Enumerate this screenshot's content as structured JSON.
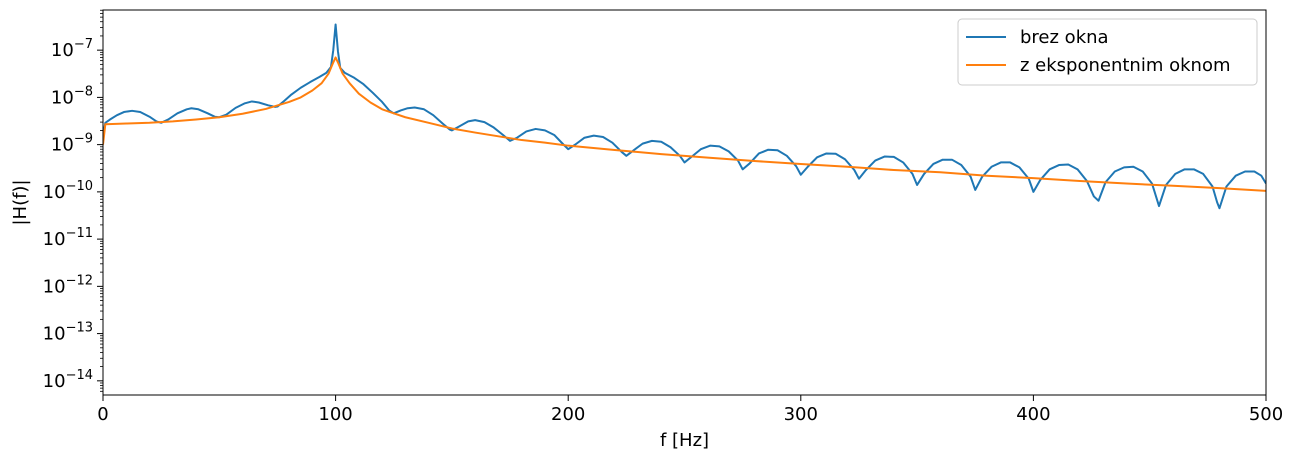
{
  "chart_data": {
    "type": "line",
    "xlabel": "f [Hz]",
    "ylabel": "|H(f)|",
    "xlim": [
      0,
      500
    ],
    "ylim_log10": [
      -14.3,
      -6.15
    ],
    "yscale": "log",
    "grid": false,
    "legend_placement": "top-right",
    "x_ticks": [
      0,
      100,
      200,
      300,
      400,
      500
    ],
    "x_tick_labels": [
      "0",
      "100",
      "200",
      "300",
      "400",
      "500"
    ],
    "y_ticks_log10": [
      -14,
      -13,
      -12,
      -11,
      -10,
      -9,
      -8,
      -7
    ],
    "y_tick_labels": [
      {
        "base": "10",
        "exp": "−14"
      },
      {
        "base": "10",
        "exp": "−13"
      },
      {
        "base": "10",
        "exp": "−12"
      },
      {
        "base": "10",
        "exp": "−11"
      },
      {
        "base": "10",
        "exp": "−10"
      },
      {
        "base": "10",
        "exp": "−9"
      },
      {
        "base": "10",
        "exp": "−8"
      },
      {
        "base": "10",
        "exp": "−7"
      }
    ],
    "series": [
      {
        "name": "brez okna",
        "color": "#1f77b4",
        "peak_freq": 100,
        "peak_value": 3.5e-07,
        "lobe_spacing": 25,
        "points": [
          [
            0,
            1.5e-09
          ],
          [
            1,
            2.9e-09
          ],
          [
            3,
            3.4e-09
          ],
          [
            6,
            4.2e-09
          ],
          [
            9,
            4.9e-09
          ],
          [
            12.5,
            5.2e-09
          ],
          [
            16,
            4.9e-09
          ],
          [
            20,
            3.9e-09
          ],
          [
            23,
            3.1e-09
          ],
          [
            25,
            2.9e-09
          ],
          [
            28,
            3.4e-09
          ],
          [
            32,
            4.6e-09
          ],
          [
            36,
            5.6e-09
          ],
          [
            38,
            5.9e-09
          ],
          [
            41,
            5.6e-09
          ],
          [
            45,
            4.6e-09
          ],
          [
            48,
            3.9e-09
          ],
          [
            50,
            3.8e-09
          ],
          [
            53,
            4.3e-09
          ],
          [
            57,
            6e-09
          ],
          [
            61,
            7.5e-09
          ],
          [
            64,
            8.2e-09
          ],
          [
            67,
            7.8e-09
          ],
          [
            71,
            6.8e-09
          ],
          [
            74,
            6.3e-09
          ],
          [
            75,
            6.4e-09
          ],
          [
            78,
            8.5e-09
          ],
          [
            81,
            1.15e-08
          ],
          [
            85,
            1.6e-08
          ],
          [
            89,
            2.1e-08
          ],
          [
            93,
            2.7e-08
          ],
          [
            96,
            3.3e-08
          ],
          [
            98,
            4.4e-08
          ],
          [
            99,
            1e-07
          ],
          [
            100,
            3.5e-07
          ],
          [
            101,
            9.5e-08
          ],
          [
            102,
            4.2e-08
          ],
          [
            104,
            3.3e-08
          ],
          [
            108,
            2.6e-08
          ],
          [
            112,
            1.9e-08
          ],
          [
            116,
            1.25e-08
          ],
          [
            120,
            8e-09
          ],
          [
            123,
            5.3e-09
          ],
          [
            125,
            4.6e-09
          ],
          [
            128,
            5.3e-09
          ],
          [
            131,
            5.9e-09
          ],
          [
            134,
            6.1e-09
          ],
          [
            138,
            5.6e-09
          ],
          [
            142,
            4.2e-09
          ],
          [
            146,
            2.8e-09
          ],
          [
            149,
            2.1e-09
          ],
          [
            150,
            2e-09
          ],
          [
            153,
            2.4e-09
          ],
          [
            157,
            3.1e-09
          ],
          [
            160,
            3.3e-09
          ],
          [
            164,
            3e-09
          ],
          [
            168,
            2.3e-09
          ],
          [
            172,
            1.6e-09
          ],
          [
            175,
            1.2e-09
          ],
          [
            178,
            1.4e-09
          ],
          [
            182,
            1.9e-09
          ],
          [
            186,
            2.15e-09
          ],
          [
            190,
            2e-09
          ],
          [
            194,
            1.6e-09
          ],
          [
            198,
            1e-09
          ],
          [
            200,
            8e-10
          ],
          [
            203,
            1e-09
          ],
          [
            207,
            1.4e-09
          ],
          [
            211,
            1.55e-09
          ],
          [
            215,
            1.45e-09
          ],
          [
            219,
            1.1e-09
          ],
          [
            223,
            7e-10
          ],
          [
            225,
            5.8e-10
          ],
          [
            228,
            7.5e-10
          ],
          [
            232,
            1.05e-09
          ],
          [
            236,
            1.2e-09
          ],
          [
            240,
            1.15e-09
          ],
          [
            244,
            8.8e-10
          ],
          [
            248,
            5.8e-10
          ],
          [
            250,
            4.2e-10
          ],
          [
            253,
            5.5e-10
          ],
          [
            257,
            8e-10
          ],
          [
            261,
            9.5e-10
          ],
          [
            265,
            9.2e-10
          ],
          [
            269,
            7.2e-10
          ],
          [
            273,
            4.6e-10
          ],
          [
            275,
            3e-10
          ],
          [
            278,
            4e-10
          ],
          [
            282,
            6.5e-10
          ],
          [
            286,
            7.8e-10
          ],
          [
            290,
            7.6e-10
          ],
          [
            294,
            5.8e-10
          ],
          [
            298,
            3.5e-10
          ],
          [
            300,
            2.3e-10
          ],
          [
            303,
            3.4e-10
          ],
          [
            307,
            5.4e-10
          ],
          [
            311,
            6.5e-10
          ],
          [
            315,
            6.4e-10
          ],
          [
            319,
            4.9e-10
          ],
          [
            323,
            2.9e-10
          ],
          [
            325,
            1.9e-10
          ],
          [
            328,
            2.9e-10
          ],
          [
            332,
            4.6e-10
          ],
          [
            336,
            5.6e-10
          ],
          [
            340,
            5.5e-10
          ],
          [
            344,
            4.2e-10
          ],
          [
            348,
            2.4e-10
          ],
          [
            350,
            1.4e-10
          ],
          [
            353,
            2.4e-10
          ],
          [
            357,
            3.9e-10
          ],
          [
            361,
            4.8e-10
          ],
          [
            365,
            4.8e-10
          ],
          [
            369,
            3.7e-10
          ],
          [
            373,
            2.1e-10
          ],
          [
            375,
            1.1e-10
          ],
          [
            378,
            2.1e-10
          ],
          [
            382,
            3.4e-10
          ],
          [
            386,
            4.2e-10
          ],
          [
            390,
            4.2e-10
          ],
          [
            394,
            3.3e-10
          ],
          [
            398,
            1.9e-10
          ],
          [
            400,
            1e-10
          ],
          [
            403,
            1.8e-10
          ],
          [
            407,
            3e-10
          ],
          [
            411,
            3.7e-10
          ],
          [
            415,
            3.8e-10
          ],
          [
            419,
            3e-10
          ],
          [
            423,
            1.7e-10
          ],
          [
            426,
            8e-11
          ],
          [
            428,
            6.5e-11
          ],
          [
            431,
            1.6e-10
          ],
          [
            435,
            2.7e-10
          ],
          [
            439,
            3.3e-10
          ],
          [
            443,
            3.4e-10
          ],
          [
            447,
            2.7e-10
          ],
          [
            451,
            1.5e-10
          ],
          [
            454,
            5e-11
          ],
          [
            457,
            1.4e-10
          ],
          [
            461,
            2.4e-10
          ],
          [
            465,
            3e-10
          ],
          [
            469,
            3e-10
          ],
          [
            473,
            2.4e-10
          ],
          [
            477,
            1.3e-10
          ],
          [
            479,
            6e-11
          ],
          [
            480,
            4.5e-11
          ],
          [
            483,
            1.3e-10
          ],
          [
            487,
            2.2e-10
          ],
          [
            491,
            2.7e-10
          ],
          [
            495,
            2.7e-10
          ],
          [
            498,
            2.2e-10
          ],
          [
            500,
            1.5e-10
          ]
        ]
      },
      {
        "name": "z eksponentnim oknom",
        "color": "#ff7f0e",
        "peak_freq": 100,
        "peak_value": 7e-08,
        "points": [
          [
            0,
            1e-09
          ],
          [
            1,
            2.7e-09
          ],
          [
            10,
            2.8e-09
          ],
          [
            20,
            2.9e-09
          ],
          [
            30,
            3.1e-09
          ],
          [
            40,
            3.4e-09
          ],
          [
            50,
            3.8e-09
          ],
          [
            60,
            4.5e-09
          ],
          [
            70,
            5.7e-09
          ],
          [
            80,
            8e-09
          ],
          [
            85,
            1e-08
          ],
          [
            90,
            1.4e-08
          ],
          [
            94,
            2e-08
          ],
          [
            97,
            3.2e-08
          ],
          [
            99,
            5.5e-08
          ],
          [
            100,
            7e-08
          ],
          [
            101,
            5.5e-08
          ],
          [
            103,
            3.2e-08
          ],
          [
            106,
            2e-08
          ],
          [
            110,
            1.2e-08
          ],
          [
            115,
            7.8e-09
          ],
          [
            120,
            5.6e-09
          ],
          [
            125,
            4.6e-09
          ],
          [
            130,
            3.8e-09
          ],
          [
            140,
            2.9e-09
          ],
          [
            150,
            2.2e-09
          ],
          [
            160,
            1.8e-09
          ],
          [
            170,
            1.5e-09
          ],
          [
            180,
            1.25e-09
          ],
          [
            190,
            1.1e-09
          ],
          [
            200,
            9.5e-10
          ],
          [
            220,
            7.7e-10
          ],
          [
            240,
            6.3e-10
          ],
          [
            260,
            5.3e-10
          ],
          [
            280,
            4.5e-10
          ],
          [
            300,
            3.9e-10
          ],
          [
            320,
            3.4e-10
          ],
          [
            340,
            2.9e-10
          ],
          [
            360,
            2.6e-10
          ],
          [
            380,
            2.2e-10
          ],
          [
            400,
            1.95e-10
          ],
          [
            420,
            1.7e-10
          ],
          [
            440,
            1.5e-10
          ],
          [
            460,
            1.35e-10
          ],
          [
            480,
            1.2e-10
          ],
          [
            500,
            1.05e-10
          ]
        ]
      }
    ]
  }
}
